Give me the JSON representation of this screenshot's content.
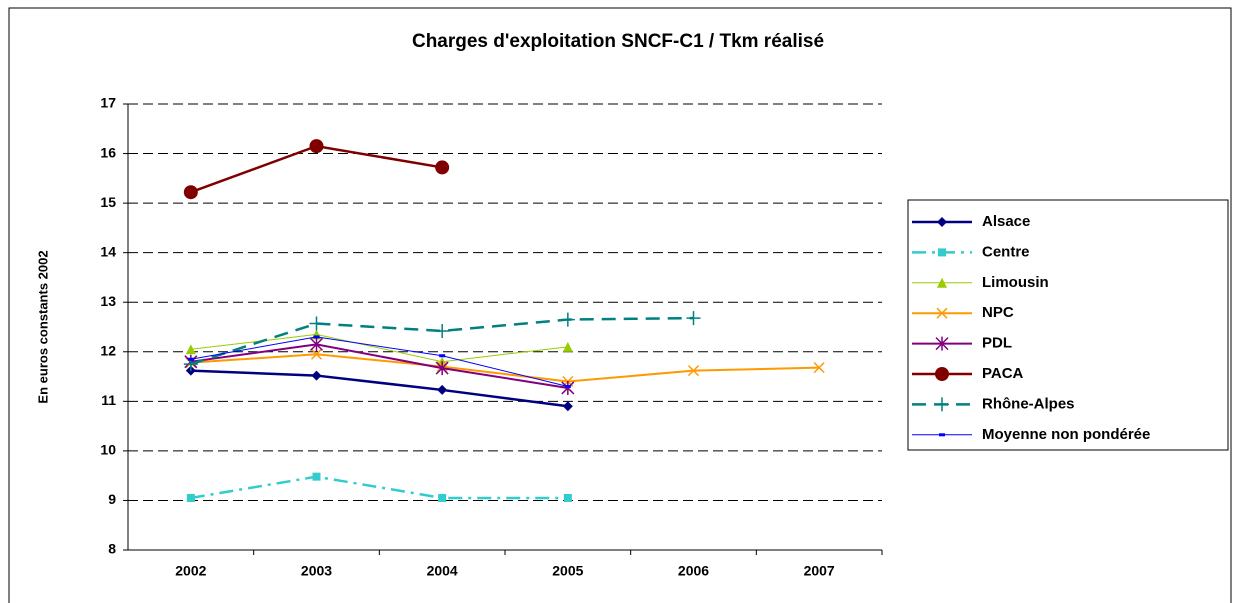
{
  "chart_data": {
    "type": "line",
    "title": "Charges d'exploitation SNCF-C1 / Tkm réalisé",
    "y_label": "En euros constants 2002",
    "categories": [
      "2002",
      "2003",
      "2004",
      "2005",
      "2006",
      "2007"
    ],
    "ylim": [
      8,
      17
    ],
    "yticks": [
      8,
      9,
      10,
      11,
      12,
      13,
      14,
      15,
      16,
      17
    ],
    "grid": true,
    "legend": "right",
    "series": [
      {
        "name": "Alsace",
        "color": "#000080",
        "marker": "diamond",
        "dash": "solid",
        "values": [
          11.62,
          11.52,
          11.23,
          10.9,
          null,
          null
        ]
      },
      {
        "name": "Centre",
        "color": "#33cccc",
        "marker": "square",
        "dash": "dashdot",
        "values": [
          9.05,
          9.48,
          9.05,
          9.05,
          null,
          null
        ]
      },
      {
        "name": "Limousin",
        "color": "#99cc00",
        "marker": "triangle",
        "dash": "solid",
        "values": [
          12.05,
          12.35,
          11.8,
          12.1,
          null,
          null
        ]
      },
      {
        "name": "NPC",
        "color": "#ff9900",
        "marker": "x",
        "dash": "solid",
        "values": [
          11.78,
          11.95,
          11.7,
          11.4,
          11.62,
          11.68
        ]
      },
      {
        "name": "PDL",
        "color": "#800080",
        "marker": "star",
        "dash": "solid",
        "values": [
          11.8,
          12.15,
          11.67,
          11.27,
          null,
          null
        ]
      },
      {
        "name": "PACA",
        "color": "#800000",
        "marker": "circle",
        "dash": "solid",
        "values": [
          15.22,
          16.15,
          15.72,
          null,
          null,
          null
        ]
      },
      {
        "name": "Rhône-Alpes",
        "color": "#008080",
        "marker": "plus",
        "dash": "dash",
        "values": [
          11.75,
          12.57,
          12.42,
          12.65,
          12.68,
          null
        ]
      },
      {
        "name": "Moyenne non pondérée",
        "color": "#0000ff",
        "marker": "dash",
        "dash": "solid",
        "values": [
          11.85,
          12.3,
          11.92,
          11.3,
          null,
          null
        ]
      }
    ]
  }
}
